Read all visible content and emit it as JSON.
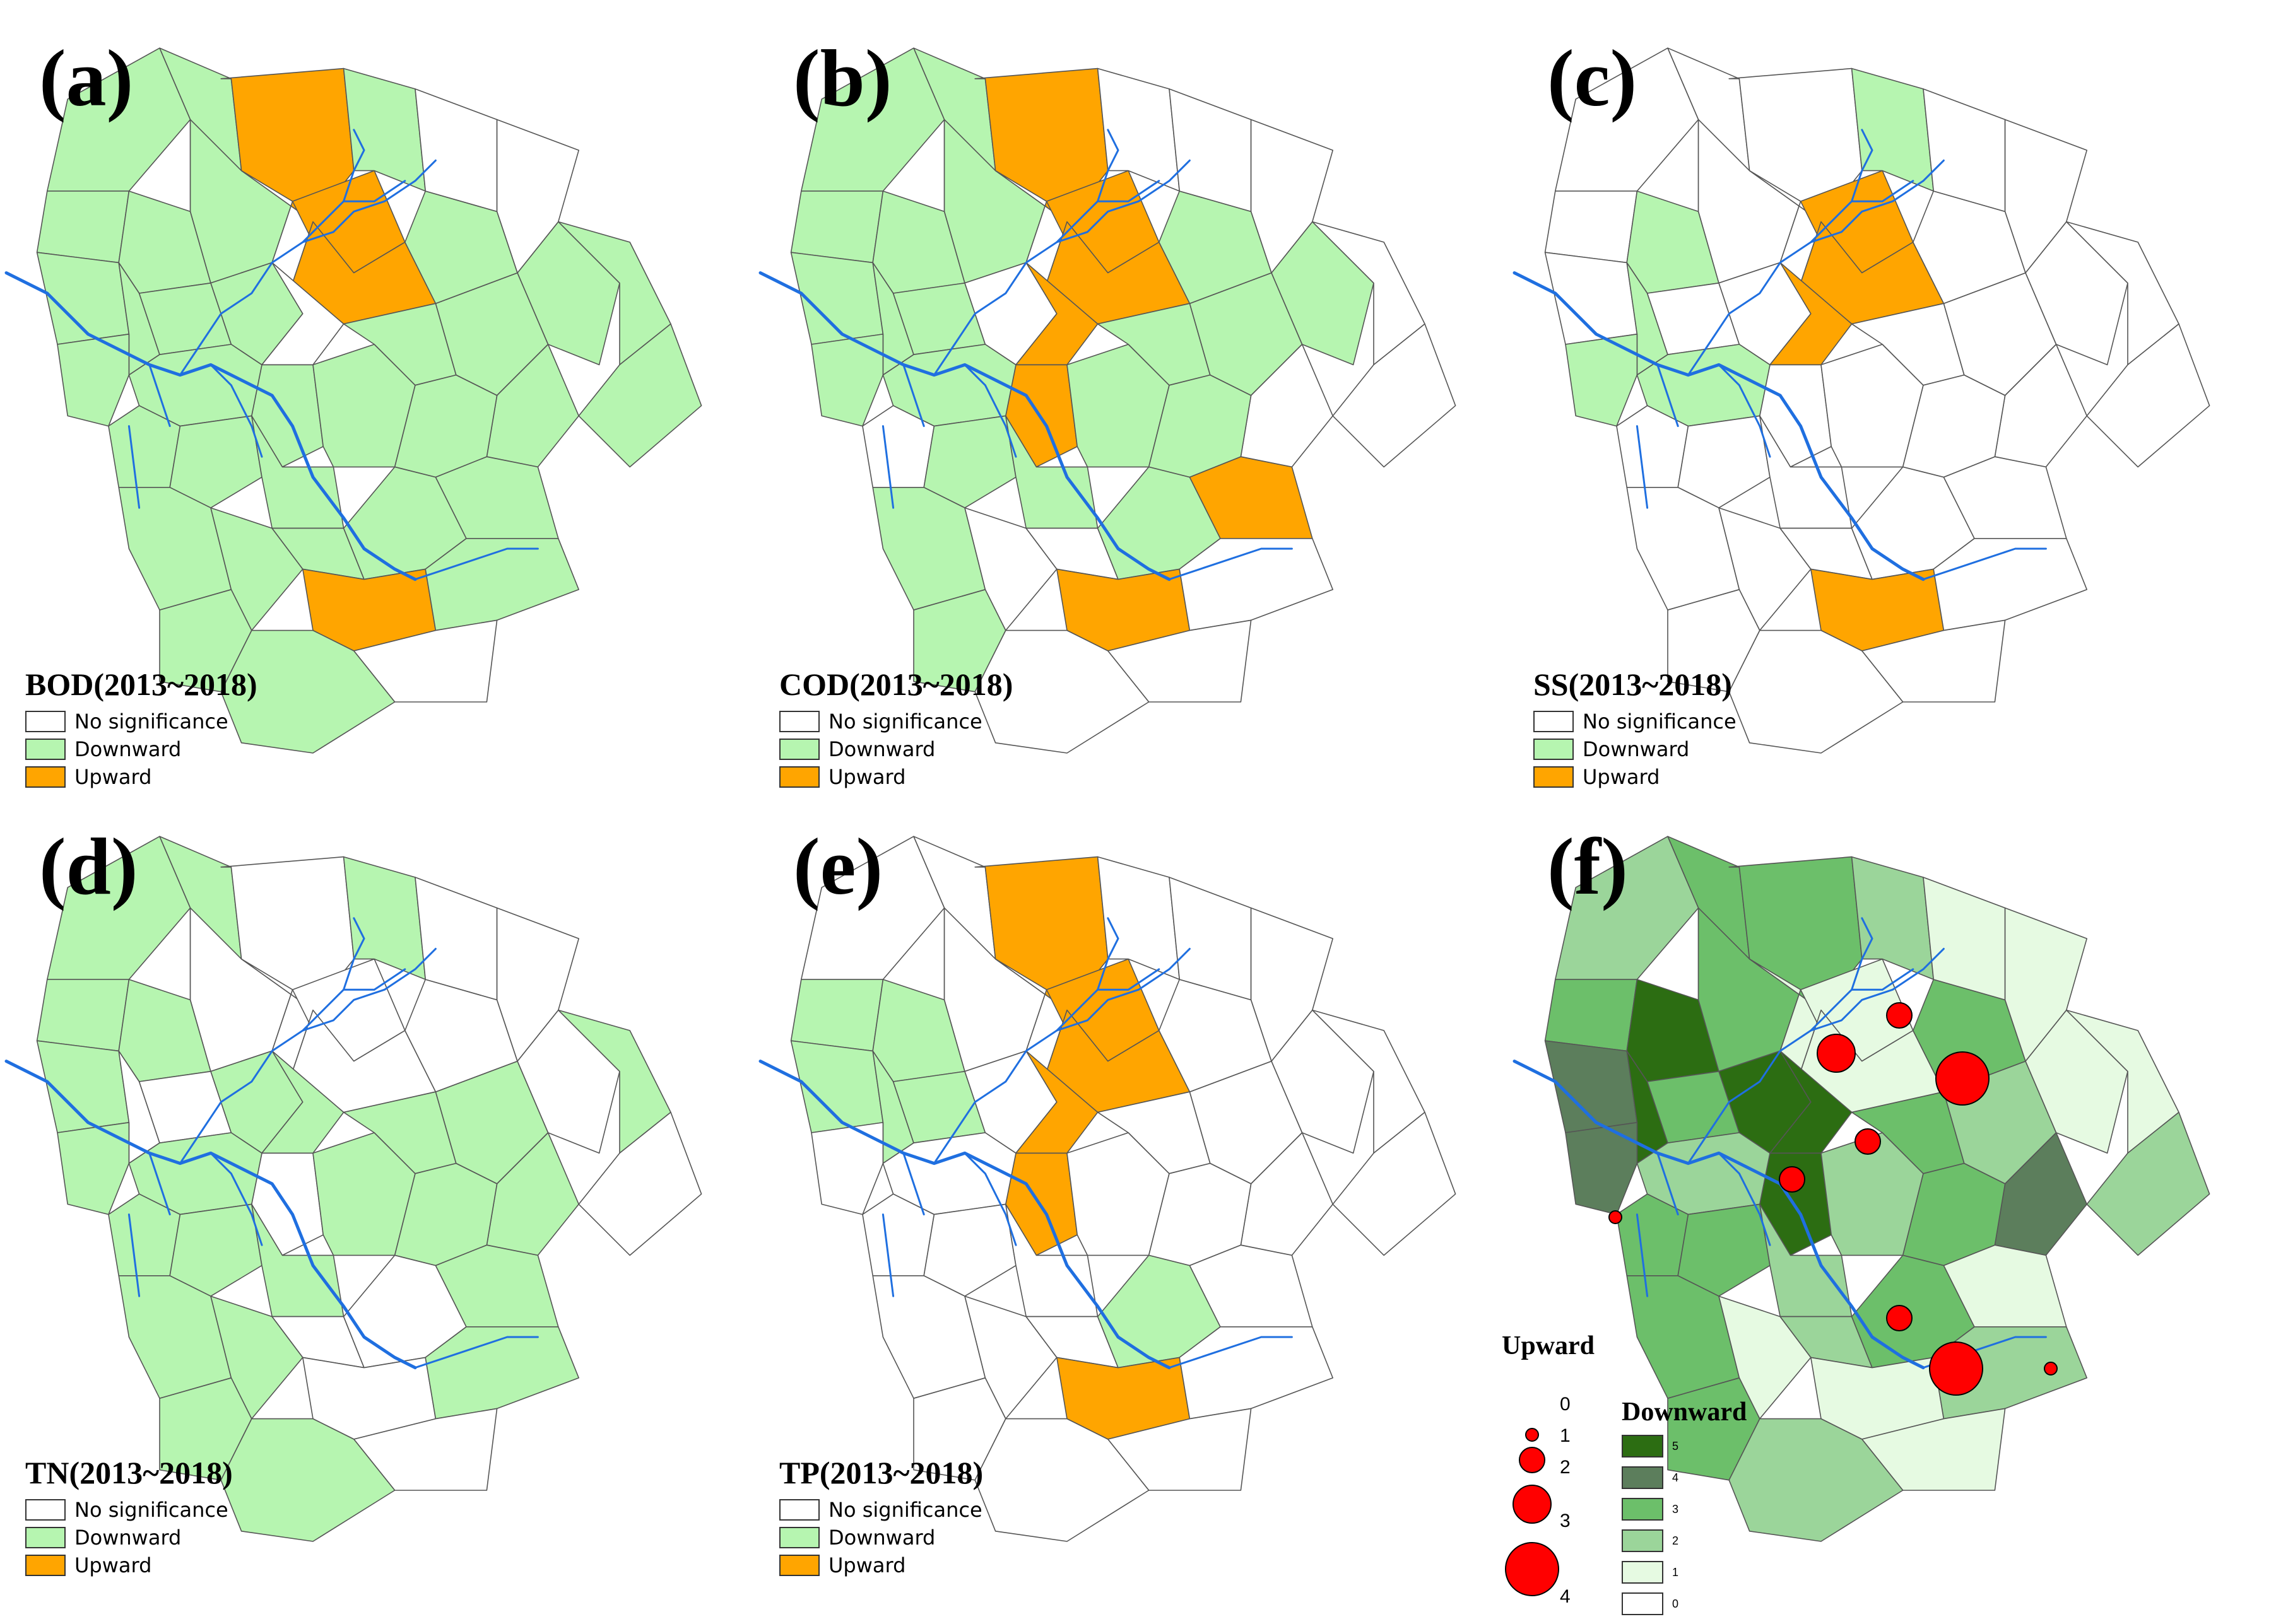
{
  "colors": {
    "none": "#ffffff",
    "down": "#b6f5b0",
    "up": "#ffa500",
    "river": "#1f6fe0",
    "outline": "#555555",
    "dot": "#ff0000",
    "grades": [
      "#ffffff",
      "#e6fae2",
      "#9bd59a",
      "#6cbf6a",
      "#5c7e5c",
      "#2c6d12"
    ]
  },
  "legend": {
    "none": "No significance",
    "down": "Downward",
    "up": "Upward"
  },
  "panels": [
    {
      "letter": "(a)",
      "title": "BOD(2013~2018)"
    },
    {
      "letter": "(b)",
      "title": "COD(2013~2018)"
    },
    {
      "letter": "(c)",
      "title": "SS(2013~2018)"
    },
    {
      "letter": "(d)",
      "title": "TN(2013~2018)"
    },
    {
      "letter": "(e)",
      "title": "TP(2013~2018)"
    },
    {
      "letter": "(f)"
    }
  ],
  "classification": {
    "a": [
      "D",
      "D",
      "D",
      "D",
      "D",
      "D",
      "D",
      "D",
      "D",
      "D",
      "U",
      "N",
      "U",
      "U",
      "D",
      "N",
      "D",
      "D",
      "D",
      "D",
      "D",
      "D",
      "D",
      "D",
      "D",
      "D",
      "D",
      "D",
      "D",
      "D",
      "N",
      "N",
      "D",
      "D",
      "D",
      "D",
      "D",
      "U",
      "D",
      "D",
      "N",
      "D"
    ],
    "b": [
      "D",
      "D",
      "D",
      "D",
      "D",
      "D",
      "D",
      "D",
      "N",
      "D",
      "U",
      "N",
      "U",
      "U",
      "N",
      "U",
      "U",
      "D",
      "N",
      "D",
      "D",
      "D",
      "D",
      "D",
      "N",
      "D",
      "D",
      "N",
      "N",
      "D",
      "N",
      "N",
      "D",
      "N",
      "N",
      "D",
      "D",
      "U",
      "U",
      "N",
      "N",
      "N"
    ],
    "c": [
      "N",
      "N",
      "N",
      "D",
      "N",
      "N",
      "D",
      "N",
      "N",
      "D",
      "N",
      "N",
      "U",
      "U",
      "D",
      "U",
      "N",
      "D",
      "N",
      "N",
      "N",
      "N",
      "N",
      "N",
      "N",
      "N",
      "N",
      "N",
      "N",
      "N",
      "N",
      "N",
      "N",
      "N",
      "N",
      "N",
      "N",
      "U",
      "N",
      "N",
      "N",
      "N"
    ],
    "d": [
      "D",
      "D",
      "D",
      "D",
      "N",
      "D",
      "N",
      "N",
      "D",
      "D",
      "N",
      "N",
      "N",
      "N",
      "D",
      "D",
      "N",
      "D",
      "D",
      "D",
      "D",
      "D",
      "D",
      "D",
      "D",
      "D",
      "N",
      "D",
      "N",
      "N",
      "N",
      "N",
      "D",
      "D",
      "N",
      "D",
      "N",
      "N",
      "D",
      "D",
      "N",
      "D"
    ],
    "e": [
      "N",
      "N",
      "D",
      "D",
      "N",
      "D",
      "D",
      "D",
      "N",
      "N",
      "U",
      "N",
      "U",
      "U",
      "N",
      "U",
      "U",
      "N",
      "N",
      "N",
      "N",
      "N",
      "N",
      "N",
      "N",
      "N",
      "N",
      "N",
      "N",
      "N",
      "N",
      "N",
      "N",
      "N",
      "N",
      "N",
      "D",
      "U",
      "N",
      "N",
      "N",
      "N"
    ]
  },
  "downward_counts": [
    2,
    3,
    3,
    5,
    3,
    4,
    5,
    3,
    5,
    4,
    3,
    1,
    1,
    1,
    2,
    5,
    5,
    2,
    3,
    3,
    2,
    2,
    3,
    2,
    4,
    3,
    1,
    1,
    2,
    3,
    1,
    1,
    3,
    1,
    2,
    3,
    3,
    1,
    1,
    2,
    1,
    2
  ],
  "upward_legend": {
    "title": "Upward",
    "values": [
      "0",
      "1",
      "2",
      "3",
      "4"
    ]
  },
  "downward_legend": {
    "title": "Downward",
    "values": [
      "5",
      "4",
      "3",
      "2",
      "1",
      "0"
    ]
  },
  "upward_points": [
    {
      "count": 2
    },
    {
      "count": 3
    },
    {
      "count": 4
    },
    {
      "count": 2
    },
    {
      "count": 2
    },
    {
      "count": 1
    },
    {
      "count": 2
    },
    {
      "count": 4
    },
    {
      "count": 1
    }
  ]
}
